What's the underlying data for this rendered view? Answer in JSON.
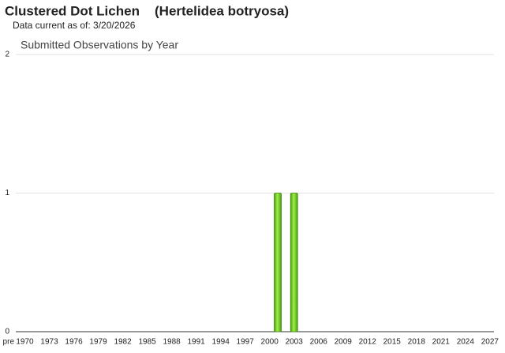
{
  "header": {
    "common_name": "Clustered Dot Lichen",
    "scientific_name": "(Hertelidea botryosa)",
    "subtitle": "Data current as of: 3/20/2026"
  },
  "chart_data": {
    "type": "bar",
    "title": "Submitted Observations by Year",
    "categories": [
      "pre",
      "1970",
      null,
      null,
      "1973",
      null,
      null,
      "1976",
      null,
      null,
      "1979",
      null,
      null,
      "1982",
      null,
      null,
      "1985",
      null,
      null,
      "1988",
      null,
      null,
      "1991",
      null,
      null,
      "1994",
      null,
      null,
      "1997",
      null,
      null,
      "2000",
      null,
      null,
      "2003",
      null,
      null,
      "2006",
      null,
      null,
      "2009",
      null,
      null,
      "2012",
      null,
      null,
      "2015",
      null,
      null,
      "2018",
      null,
      null,
      "2021",
      null,
      null,
      "2024",
      null,
      null,
      "2027"
    ],
    "values": [
      0,
      0,
      0,
      0,
      0,
      0,
      0,
      0,
      0,
      0,
      0,
      0,
      0,
      0,
      0,
      0,
      0,
      0,
      0,
      0,
      0,
      0,
      0,
      0,
      0,
      0,
      0,
      0,
      0,
      0,
      0,
      0,
      1,
      0,
      1,
      0,
      0,
      0,
      0,
      0,
      0,
      0,
      0,
      0,
      0,
      0,
      0,
      0,
      0,
      0,
      0,
      0,
      0,
      0,
      0,
      0,
      0,
      0,
      0
    ],
    "color": "#7ed62a",
    "ylim": [
      0,
      2
    ],
    "yticks": [
      0,
      1,
      2
    ],
    "grid": true
  }
}
